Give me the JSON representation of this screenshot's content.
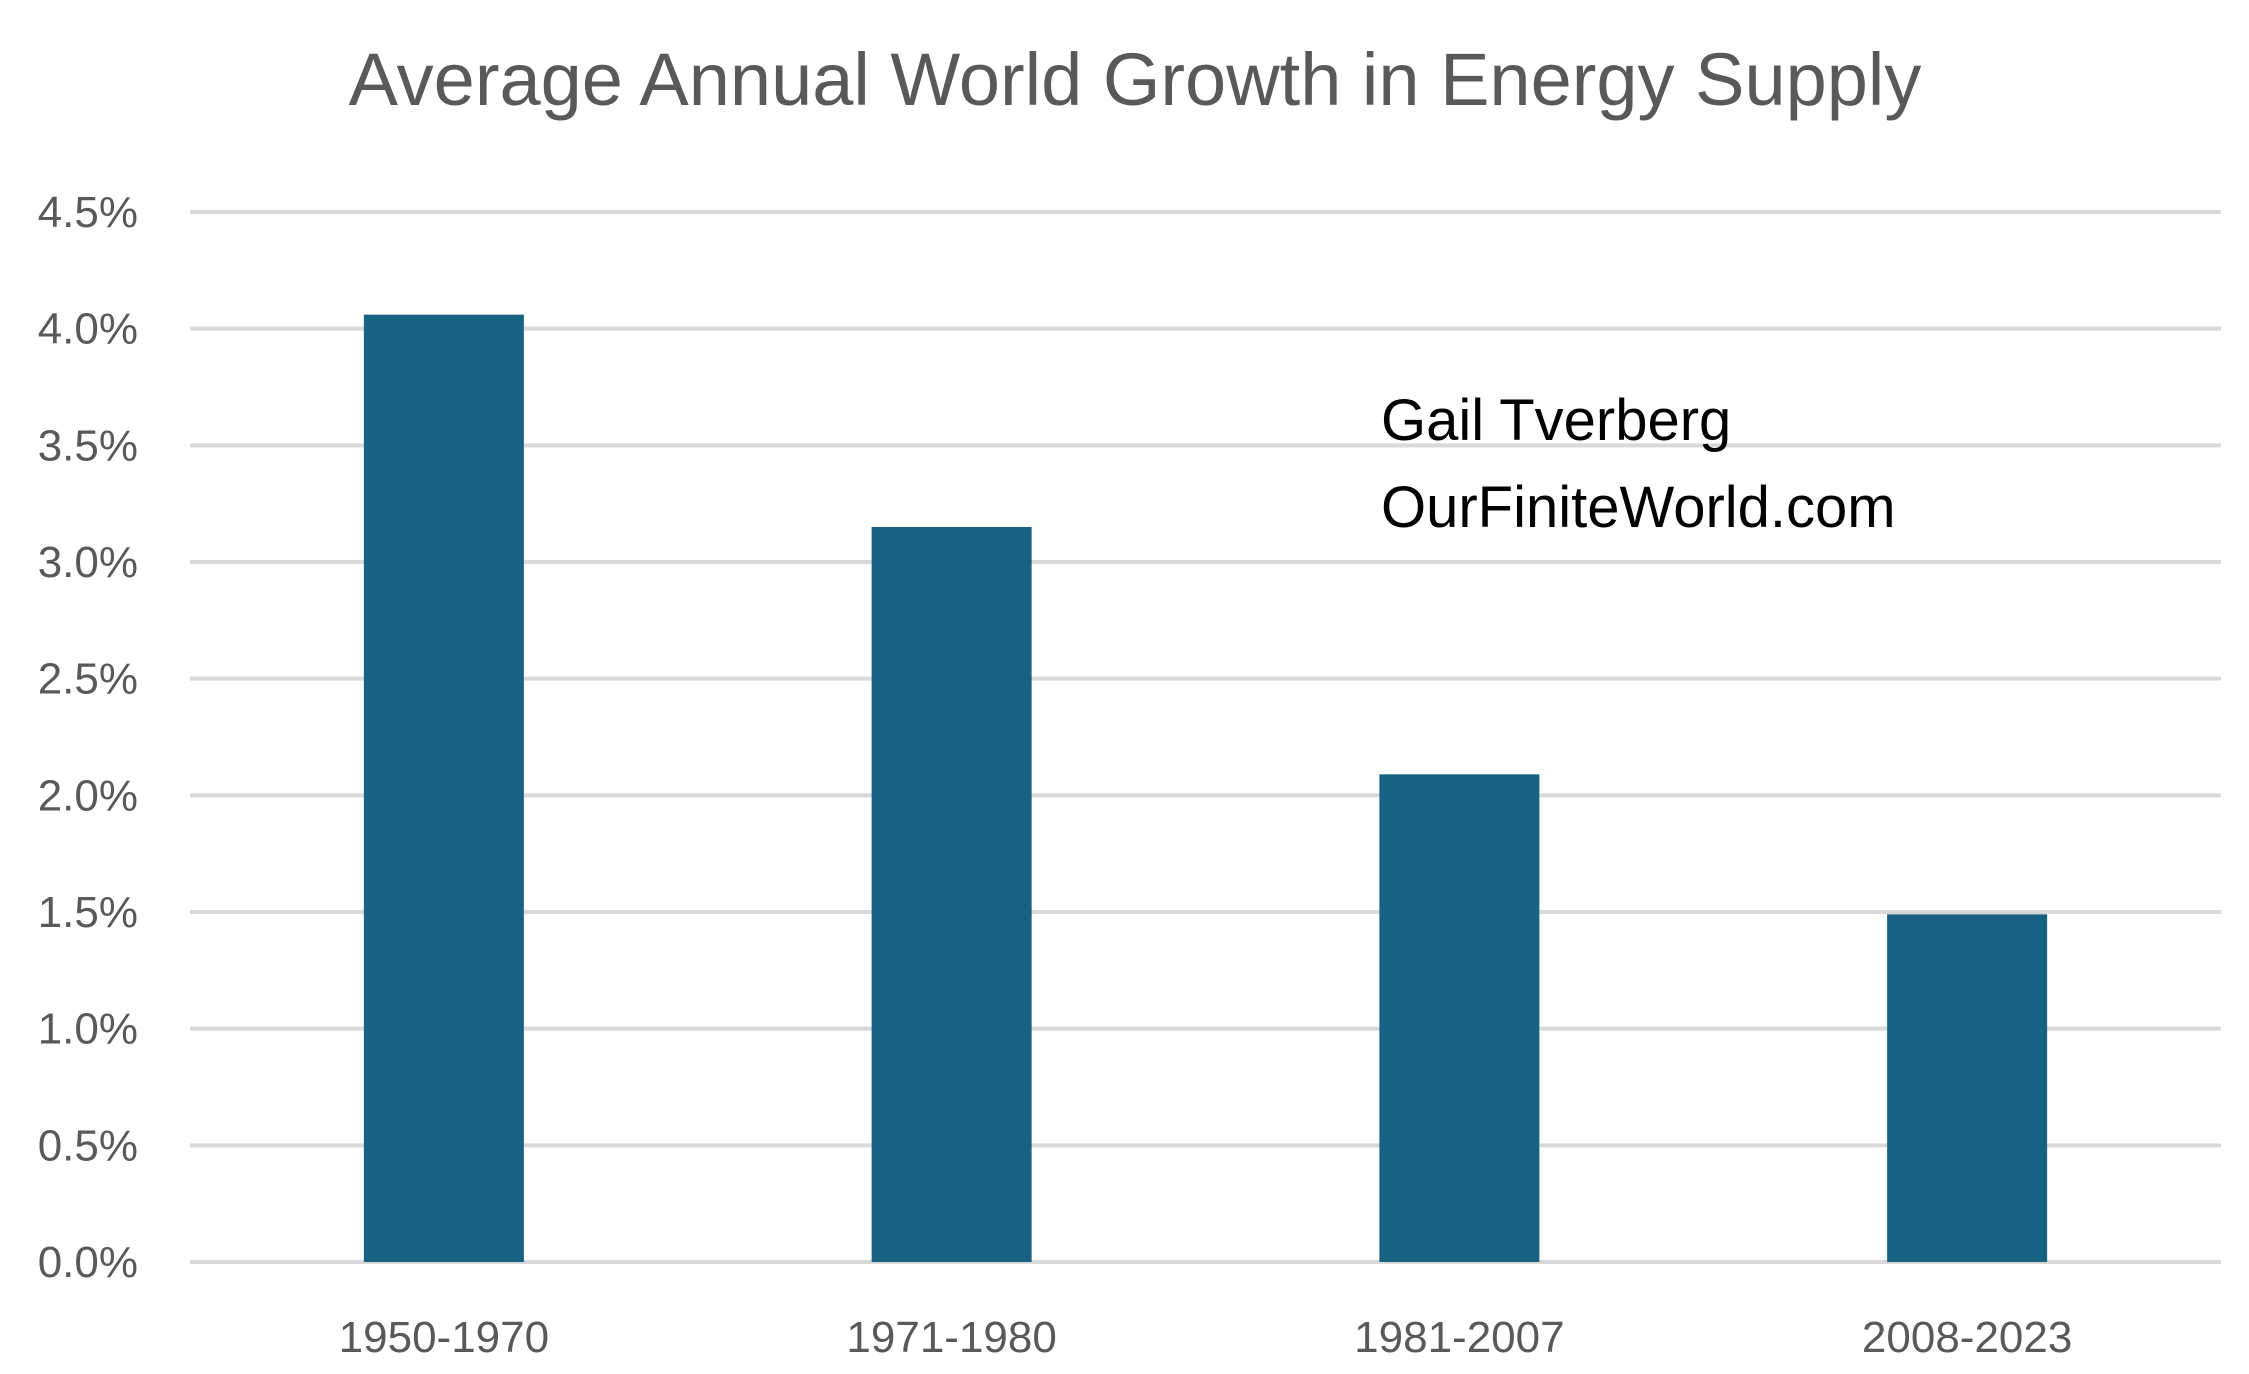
{
  "chart_data": {
    "type": "bar",
    "title": "Average Annual World Growth in Energy Supply",
    "categories": [
      "1950-1970",
      "1971-1980",
      "1981-2007",
      "2008-2023"
    ],
    "values": [
      4.06,
      3.15,
      2.09,
      1.49
    ],
    "unit": "%",
    "xlabel": "",
    "ylabel": "",
    "ylim": [
      0,
      4.5
    ],
    "yticks": [
      "0.0%",
      "0.5%",
      "1.0%",
      "1.5%",
      "2.0%",
      "2.5%",
      "3.0%",
      "3.5%",
      "4.0%",
      "4.5%"
    ],
    "grid": true,
    "bar_color": "#176182",
    "annotations": [
      "Gail Tverberg",
      "OurFiniteWorld.com"
    ]
  }
}
